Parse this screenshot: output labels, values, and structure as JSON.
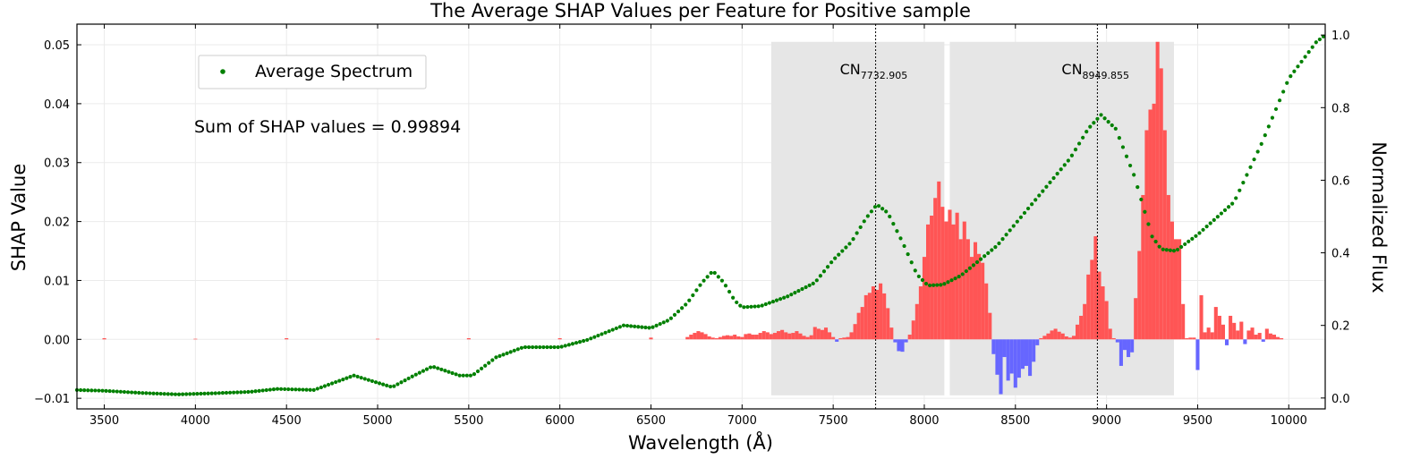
{
  "chart_data": {
    "type": "bar+scatter",
    "title": "The Average SHAP Values per Feature for Positive sample",
    "xlabel": "Wavelength (Å)",
    "ylabel": "SHAP Value",
    "y2label": "Normalized Flux",
    "xlim": [
      3350,
      10200
    ],
    "ylim": [
      -0.0118,
      0.0535
    ],
    "y2lim": [
      -0.03,
      1.03
    ],
    "grid": true,
    "x_ticks": [
      3500,
      4000,
      4500,
      5000,
      5500,
      6000,
      6500,
      7000,
      7500,
      8000,
      8500,
      9000,
      9500,
      10000
    ],
    "y_ticks": [
      -0.01,
      0.0,
      0.01,
      0.02,
      0.03,
      0.04,
      0.05
    ],
    "y_tick_labels": [
      "−0.01",
      "0.00",
      "0.01",
      "0.02",
      "0.03",
      "0.04",
      "0.05"
    ],
    "y2_ticks": [
      0.0,
      0.2,
      0.4,
      0.6,
      0.8,
      1.0
    ],
    "y2_tick_labels": [
      "0.0",
      "0.2",
      "0.4",
      "0.6",
      "0.8",
      "1.0"
    ],
    "annotation": "Sum of SHAP values = 0.99894",
    "legend": {
      "label": "Average Spectrum",
      "position": "top-left"
    },
    "regions": [
      {
        "x_start": 7160,
        "x_end": 8110,
        "center": 7732.905,
        "label_main": "CN",
        "label_sub": "7732.905"
      },
      {
        "x_start": 8140,
        "x_end": 9370,
        "center": 8949.855,
        "label_main": "CN",
        "label_sub": "8949.855"
      }
    ],
    "colors": {
      "positive_bar": "#ff5555",
      "negative_bar": "#6666ff",
      "spectrum": "#008000",
      "region": "#e6e6e6",
      "grid": "#ebebeb"
    },
    "shap_points": [
      [
        3500,
        0.0002
      ],
      [
        4000,
        0.0001
      ],
      [
        4500,
        0.0002
      ],
      [
        5000,
        0.0001
      ],
      [
        5500,
        0.0002
      ],
      [
        6000,
        0.0002
      ],
      [
        6500,
        0.0003
      ],
      [
        6700,
        0.0004
      ],
      [
        6720,
        0.0008
      ],
      [
        6740,
        0.0011
      ],
      [
        6760,
        0.0014
      ],
      [
        6780,
        0.0012
      ],
      [
        6800,
        0.0009
      ],
      [
        6820,
        0.0005
      ],
      [
        6840,
        0.0003
      ],
      [
        6860,
        0.0002
      ],
      [
        6880,
        0.0004
      ],
      [
        6900,
        0.0006
      ],
      [
        6920,
        0.0007
      ],
      [
        6940,
        0.0006
      ],
      [
        6960,
        0.0008
      ],
      [
        6980,
        0.0005
      ],
      [
        7000,
        0.0004
      ],
      [
        7020,
        0.0009
      ],
      [
        7040,
        0.001
      ],
      [
        7060,
        0.0008
      ],
      [
        7080,
        0.0008
      ],
      [
        7100,
        0.0011
      ],
      [
        7120,
        0.0014
      ],
      [
        7140,
        0.0012
      ],
      [
        7160,
        0.0009
      ],
      [
        7180,
        0.0011
      ],
      [
        7200,
        0.0014
      ],
      [
        7220,
        0.0016
      ],
      [
        7240,
        0.0012
      ],
      [
        7260,
        0.001
      ],
      [
        7280,
        0.0011
      ],
      [
        7300,
        0.0014
      ],
      [
        7320,
        0.001
      ],
      [
        7340,
        0.0006
      ],
      [
        7360,
        0.0004
      ],
      [
        7380,
        0.0007
      ],
      [
        7400,
        0.0021
      ],
      [
        7420,
        0.0018
      ],
      [
        7440,
        0.0016
      ],
      [
        7460,
        0.002
      ],
      [
        7480,
        0.0012
      ],
      [
        7500,
        0.0004
      ],
      [
        7520,
        -0.0004
      ],
      [
        7540,
        0.0002
      ],
      [
        7560,
        0.0003
      ],
      [
        7580,
        0.0004
      ],
      [
        7600,
        0.0012
      ],
      [
        7620,
        0.0026
      ],
      [
        7640,
        0.0045
      ],
      [
        7660,
        0.0055
      ],
      [
        7680,
        0.0075
      ],
      [
        7700,
        0.0079
      ],
      [
        7720,
        0.009
      ],
      [
        7740,
        0.0084
      ],
      [
        7760,
        0.0095
      ],
      [
        7780,
        0.0078
      ],
      [
        7800,
        0.0053
      ],
      [
        7820,
        0.002
      ],
      [
        7840,
        -0.0005
      ],
      [
        7860,
        -0.002
      ],
      [
        7880,
        -0.0021
      ],
      [
        7900,
        -0.0005
      ],
      [
        7920,
        0.0008
      ],
      [
        7940,
        0.0032
      ],
      [
        7960,
        0.006
      ],
      [
        7980,
        0.009
      ],
      [
        8000,
        0.014
      ],
      [
        8020,
        0.0195
      ],
      [
        8040,
        0.021
      ],
      [
        8060,
        0.024
      ],
      [
        8080,
        0.0268
      ],
      [
        8100,
        0.0225
      ],
      [
        8120,
        0.02
      ],
      [
        8140,
        0.022
      ],
      [
        8160,
        0.0195
      ],
      [
        8180,
        0.0215
      ],
      [
        8200,
        0.017
      ],
      [
        8220,
        0.02
      ],
      [
        8240,
        0.017
      ],
      [
        8260,
        0.014
      ],
      [
        8280,
        0.0165
      ],
      [
        8300,
        0.0145
      ],
      [
        8320,
        0.013
      ],
      [
        8340,
        0.0095
      ],
      [
        8360,
        0.0045
      ],
      [
        8380,
        -0.0025
      ],
      [
        8400,
        -0.006
      ],
      [
        8420,
        -0.0093
      ],
      [
        8440,
        -0.003
      ],
      [
        8460,
        -0.007
      ],
      [
        8480,
        -0.0058
      ],
      [
        8500,
        -0.0082
      ],
      [
        8520,
        -0.0065
      ],
      [
        8540,
        -0.005
      ],
      [
        8560,
        -0.0045
      ],
      [
        8580,
        -0.0062
      ],
      [
        8600,
        -0.0038
      ],
      [
        8620,
        -0.001
      ],
      [
        8640,
        0.0002
      ],
      [
        8660,
        0.0006
      ],
      [
        8680,
        0.001
      ],
      [
        8700,
        0.0015
      ],
      [
        8720,
        0.0018
      ],
      [
        8740,
        0.0013
      ],
      [
        8760,
        0.001
      ],
      [
        8780,
        0.0005
      ],
      [
        8800,
        0.0003
      ],
      [
        8820,
        0.0006
      ],
      [
        8840,
        0.0025
      ],
      [
        8860,
        0.004
      ],
      [
        8880,
        0.006
      ],
      [
        8900,
        0.011
      ],
      [
        8920,
        0.0135
      ],
      [
        8940,
        0.0175
      ],
      [
        8960,
        0.0115
      ],
      [
        8980,
        0.009
      ],
      [
        9000,
        0.0065
      ],
      [
        9020,
        0.0018
      ],
      [
        9040,
        0.0002
      ],
      [
        9060,
        -0.0005
      ],
      [
        9080,
        -0.0045
      ],
      [
        9100,
        -0.0018
      ],
      [
        9120,
        -0.003
      ],
      [
        9140,
        -0.0022
      ],
      [
        9160,
        0.007
      ],
      [
        9180,
        0.015
      ],
      [
        9200,
        0.0245
      ],
      [
        9220,
        0.0355
      ],
      [
        9240,
        0.039
      ],
      [
        9260,
        0.04
      ],
      [
        9280,
        0.0505
      ],
      [
        9300,
        0.046
      ],
      [
        9320,
        0.0355
      ],
      [
        9340,
        0.0245
      ],
      [
        9360,
        0.02
      ],
      [
        9380,
        0.017
      ],
      [
        9400,
        0.017
      ],
      [
        9420,
        0.006
      ],
      [
        9440,
        0.0002
      ],
      [
        9460,
        0.0003
      ],
      [
        9480,
        0.0003
      ],
      [
        9500,
        -0.0052
      ],
      [
        9520,
        0.0075
      ],
      [
        9540,
        0.0012
      ],
      [
        9560,
        0.002
      ],
      [
        9580,
        0.0012
      ],
      [
        9600,
        0.0055
      ],
      [
        9620,
        0.004
      ],
      [
        9640,
        0.0025
      ],
      [
        9660,
        -0.001
      ],
      [
        9680,
        0.004
      ],
      [
        9700,
        0.0028
      ],
      [
        9720,
        0.0015
      ],
      [
        9740,
        0.003
      ],
      [
        9760,
        -0.0008
      ],
      [
        9780,
        0.0015
      ],
      [
        9800,
        0.002
      ],
      [
        9820,
        0.0008
      ],
      [
        9840,
        0.0011
      ],
      [
        9860,
        -0.0004
      ],
      [
        9880,
        0.0018
      ],
      [
        9900,
        0.001
      ],
      [
        9920,
        0.0008
      ],
      [
        9940,
        0.0004
      ],
      [
        9960,
        0.0002
      ]
    ],
    "spectrum_key_points": [
      [
        3350,
        0.022
      ],
      [
        3500,
        0.02
      ],
      [
        3700,
        0.014
      ],
      [
        3900,
        0.01
      ],
      [
        4100,
        0.013
      ],
      [
        4300,
        0.017
      ],
      [
        4450,
        0.025
      ],
      [
        4650,
        0.022
      ],
      [
        4870,
        0.062
      ],
      [
        5000,
        0.042
      ],
      [
        5080,
        0.03
      ],
      [
        5200,
        0.062
      ],
      [
        5300,
        0.087
      ],
      [
        5450,
        0.062
      ],
      [
        5520,
        0.062
      ],
      [
        5650,
        0.112
      ],
      [
        5800,
        0.14
      ],
      [
        6000,
        0.14
      ],
      [
        6150,
        0.16
      ],
      [
        6350,
        0.2
      ],
      [
        6500,
        0.193
      ],
      [
        6600,
        0.215
      ],
      [
        6700,
        0.262
      ],
      [
        6780,
        0.318
      ],
      [
        6840,
        0.35
      ],
      [
        6900,
        0.318
      ],
      [
        6960,
        0.268
      ],
      [
        7000,
        0.25
      ],
      [
        7100,
        0.253
      ],
      [
        7250,
        0.28
      ],
      [
        7400,
        0.318
      ],
      [
        7500,
        0.38
      ],
      [
        7600,
        0.43
      ],
      [
        7680,
        0.495
      ],
      [
        7740,
        0.533
      ],
      [
        7800,
        0.51
      ],
      [
        7880,
        0.43
      ],
      [
        7960,
        0.34
      ],
      [
        8020,
        0.31
      ],
      [
        8100,
        0.312
      ],
      [
        8200,
        0.337
      ],
      [
        8400,
        0.42
      ],
      [
        8600,
        0.54
      ],
      [
        8800,
        0.66
      ],
      [
        8900,
        0.742
      ],
      [
        8970,
        0.78
      ],
      [
        9050,
        0.742
      ],
      [
        9150,
        0.615
      ],
      [
        9250,
        0.445
      ],
      [
        9300,
        0.41
      ],
      [
        9380,
        0.405
      ],
      [
        9500,
        0.45
      ],
      [
        9700,
        0.54
      ],
      [
        9850,
        0.7
      ],
      [
        10000,
        0.88
      ],
      [
        10150,
        0.98
      ],
      [
        10200,
        1.0
      ]
    ]
  }
}
